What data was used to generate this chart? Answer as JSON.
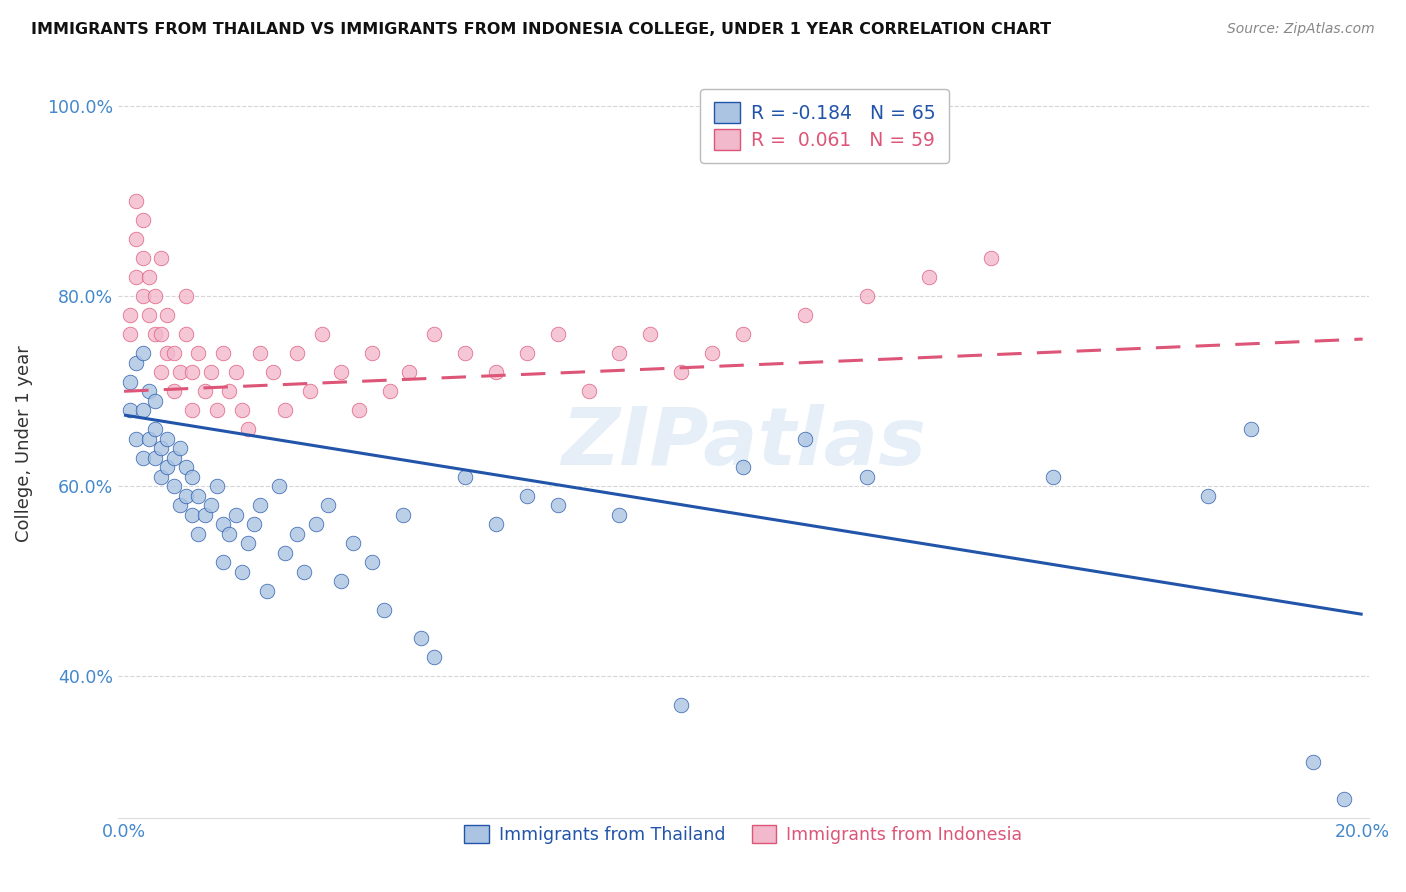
{
  "title": "IMMIGRANTS FROM THAILAND VS IMMIGRANTS FROM INDONESIA COLLEGE, UNDER 1 YEAR CORRELATION CHART",
  "source": "Source: ZipAtlas.com",
  "ylabel": "College, Under 1 year",
  "x_min": 0.0,
  "x_max": 0.2,
  "y_min": 0.25,
  "y_max": 1.04,
  "x_ticks": [
    0.0,
    0.05,
    0.1,
    0.15,
    0.2
  ],
  "x_tick_labels": [
    "0.0%",
    "",
    "",
    "",
    "20.0%"
  ],
  "y_ticks": [
    0.4,
    0.6,
    0.8,
    1.0
  ],
  "y_tick_labels": [
    "40.0%",
    "60.0%",
    "80.0%",
    "100.0%"
  ],
  "thailand_color": "#aac4e2",
  "indonesia_color": "#f2b8cc",
  "thailand_line_color": "#2255aa",
  "indonesia_line_color": "#dd5577",
  "legend_r_thailand": "-0.184",
  "legend_n_thailand": "65",
  "legend_r_indonesia": " 0.061",
  "legend_n_indonesia": "59",
  "thailand_line_y0": 0.675,
  "thailand_line_y1": 0.465,
  "indonesia_line_y0": 0.7,
  "indonesia_line_y1": 0.755,
  "thailand_x": [
    0.001,
    0.001,
    0.002,
    0.002,
    0.003,
    0.003,
    0.003,
    0.004,
    0.004,
    0.005,
    0.005,
    0.005,
    0.006,
    0.006,
    0.007,
    0.007,
    0.008,
    0.008,
    0.009,
    0.009,
    0.01,
    0.01,
    0.011,
    0.011,
    0.012,
    0.012,
    0.013,
    0.014,
    0.015,
    0.016,
    0.016,
    0.017,
    0.018,
    0.019,
    0.02,
    0.021,
    0.022,
    0.023,
    0.025,
    0.026,
    0.028,
    0.029,
    0.031,
    0.033,
    0.035,
    0.037,
    0.04,
    0.042,
    0.045,
    0.048,
    0.05,
    0.055,
    0.06,
    0.065,
    0.07,
    0.08,
    0.09,
    0.1,
    0.11,
    0.12,
    0.15,
    0.175,
    0.182,
    0.192,
    0.197
  ],
  "thailand_y": [
    0.71,
    0.68,
    0.73,
    0.65,
    0.74,
    0.63,
    0.68,
    0.7,
    0.65,
    0.69,
    0.63,
    0.66,
    0.64,
    0.61,
    0.65,
    0.62,
    0.63,
    0.6,
    0.64,
    0.58,
    0.62,
    0.59,
    0.61,
    0.57,
    0.59,
    0.55,
    0.57,
    0.58,
    0.6,
    0.56,
    0.52,
    0.55,
    0.57,
    0.51,
    0.54,
    0.56,
    0.58,
    0.49,
    0.6,
    0.53,
    0.55,
    0.51,
    0.56,
    0.58,
    0.5,
    0.54,
    0.52,
    0.47,
    0.57,
    0.44,
    0.42,
    0.61,
    0.56,
    0.59,
    0.58,
    0.57,
    0.37,
    0.62,
    0.65,
    0.61,
    0.61,
    0.59,
    0.66,
    0.31,
    0.27
  ],
  "indonesia_x": [
    0.001,
    0.001,
    0.002,
    0.002,
    0.002,
    0.003,
    0.003,
    0.003,
    0.004,
    0.004,
    0.005,
    0.005,
    0.006,
    0.006,
    0.006,
    0.007,
    0.007,
    0.008,
    0.008,
    0.009,
    0.01,
    0.01,
    0.011,
    0.011,
    0.012,
    0.013,
    0.014,
    0.015,
    0.016,
    0.017,
    0.018,
    0.019,
    0.02,
    0.022,
    0.024,
    0.026,
    0.028,
    0.03,
    0.032,
    0.035,
    0.038,
    0.04,
    0.043,
    0.046,
    0.05,
    0.055,
    0.06,
    0.065,
    0.07,
    0.075,
    0.08,
    0.085,
    0.09,
    0.095,
    0.1,
    0.11,
    0.12,
    0.13,
    0.14
  ],
  "indonesia_y": [
    0.76,
    0.78,
    0.82,
    0.86,
    0.9,
    0.8,
    0.84,
    0.88,
    0.78,
    0.82,
    0.76,
    0.8,
    0.84,
    0.72,
    0.76,
    0.74,
    0.78,
    0.7,
    0.74,
    0.72,
    0.76,
    0.8,
    0.72,
    0.68,
    0.74,
    0.7,
    0.72,
    0.68,
    0.74,
    0.7,
    0.72,
    0.68,
    0.66,
    0.74,
    0.72,
    0.68,
    0.74,
    0.7,
    0.76,
    0.72,
    0.68,
    0.74,
    0.7,
    0.72,
    0.76,
    0.74,
    0.72,
    0.74,
    0.76,
    0.7,
    0.74,
    0.76,
    0.72,
    0.74,
    0.76,
    0.78,
    0.8,
    0.82,
    0.84
  ],
  "background_color": "#ffffff",
  "grid_color": "#cccccc",
  "axis_color": "#4488cc",
  "watermark_text": "ZIPatlas",
  "watermark_color": "#c8ddf0",
  "watermark_alpha": 0.45
}
